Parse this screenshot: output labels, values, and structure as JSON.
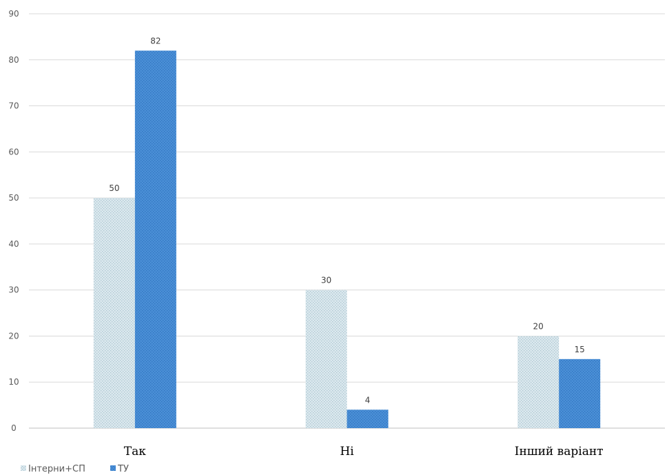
{
  "chart_data": {
    "type": "bar",
    "categories": [
      "Так",
      "Ні",
      "Інший варіант"
    ],
    "series": [
      {
        "name": "Інтерни+СП",
        "values": [
          50,
          30,
          20
        ],
        "color": "#c9dbe2",
        "pattern": "dotted"
      },
      {
        "name": "ТУ",
        "values": [
          82,
          4,
          15
        ],
        "color": "#4a8fd6",
        "pattern": "dotted"
      }
    ],
    "ylim": [
      0,
      90
    ],
    "yticks": [
      0,
      10,
      20,
      30,
      40,
      50,
      60,
      70,
      80,
      90
    ],
    "grid": true,
    "data_labels": true,
    "legend_position": "bottom-left"
  }
}
